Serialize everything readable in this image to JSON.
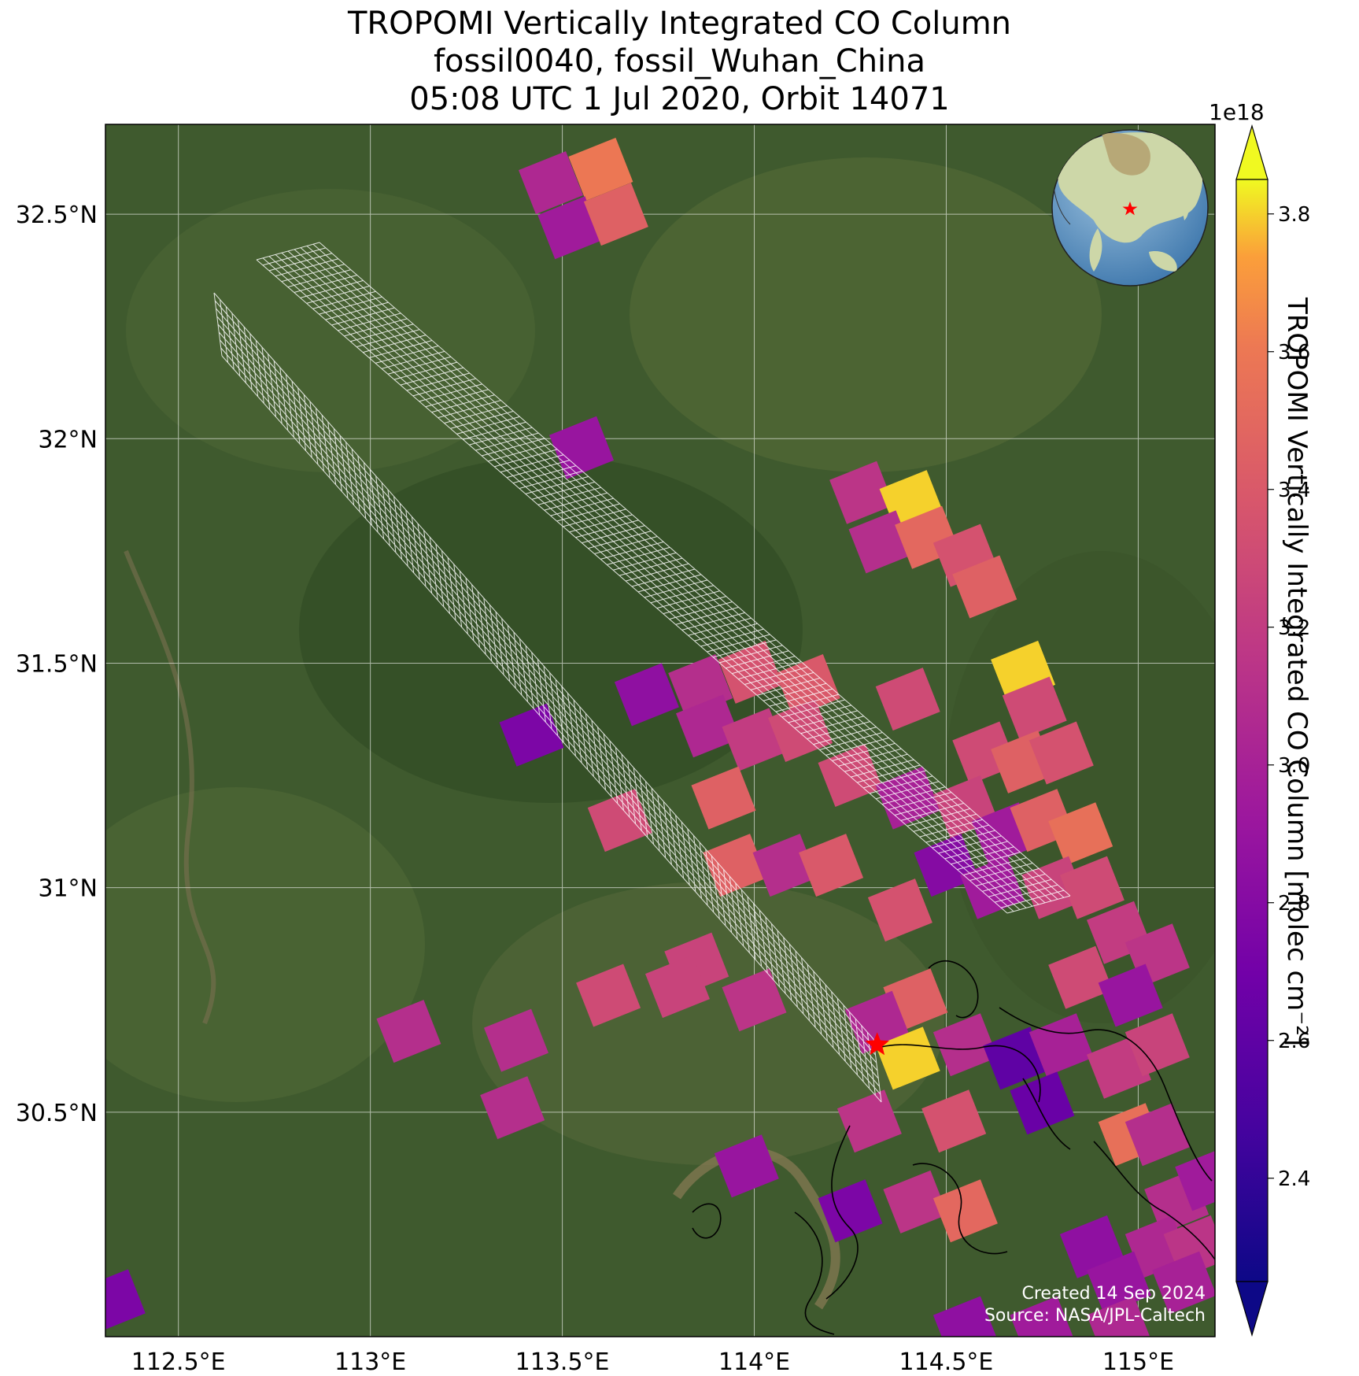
{
  "title": {
    "line1": "TROPOMI Vertically Integrated CO Column",
    "line2": "fossil0040, fossil_Wuhan_China",
    "line3": "05:08 UTC 1 Jul 2020, Orbit 14071"
  },
  "axes": {
    "lat_ticks": [
      {
        "value": 30.5,
        "label": "30.5°N"
      },
      {
        "value": 31.0,
        "label": "31°N"
      },
      {
        "value": 31.5,
        "label": "31.5°N"
      },
      {
        "value": 32.0,
        "label": "32°N"
      },
      {
        "value": 32.5,
        "label": "32.5°N"
      }
    ],
    "lon_ticks": [
      {
        "value": 112.5,
        "label": "112.5°E"
      },
      {
        "value": 113.0,
        "label": "113°E"
      },
      {
        "value": 113.5,
        "label": "113.5°E"
      },
      {
        "value": 114.0,
        "label": "114°E"
      },
      {
        "value": 114.5,
        "label": "114.5°E"
      },
      {
        "value": 115.0,
        "label": "115°E"
      }
    ],
    "lon_range": [
      112.31,
      115.2
    ],
    "lat_range": [
      30.0,
      32.7
    ]
  },
  "colorbar": {
    "label": "TROPOMI Vertically Integrated CO Column [molec cm⁻²]",
    "scale_exponent": "1e18",
    "range": [
      2.25,
      3.85
    ],
    "colormap": "plasma",
    "ticks": [
      "2.4",
      "2.6",
      "2.8",
      "3.0",
      "3.2",
      "3.4",
      "3.6",
      "3.8"
    ]
  },
  "site": {
    "name": "fossil_Wuhan_China",
    "lon": 114.32,
    "lat": 30.65,
    "marker_color": "#ff0000"
  },
  "footer": {
    "created": "Created 14 Sep 2024",
    "source": "Source: NASA/JPL-Caltech"
  },
  "map_data": {
    "pixels": [
      {
        "lon": 113.47,
        "lat": 32.57,
        "v": 3.05
      },
      {
        "lon": 113.6,
        "lat": 32.6,
        "v": 3.6
      },
      {
        "lon": 113.52,
        "lat": 32.47,
        "v": 2.95
      },
      {
        "lon": 113.64,
        "lat": 32.5,
        "v": 3.45
      },
      {
        "lon": 113.55,
        "lat": 31.98,
        "v": 2.9
      },
      {
        "lon": 114.28,
        "lat": 31.88,
        "v": 3.15
      },
      {
        "lon": 114.41,
        "lat": 31.86,
        "v": 3.8
      },
      {
        "lon": 114.33,
        "lat": 31.77,
        "v": 3.1
      },
      {
        "lon": 114.45,
        "lat": 31.78,
        "v": 3.5
      },
      {
        "lon": 114.55,
        "lat": 31.74,
        "v": 3.35
      },
      {
        "lon": 114.6,
        "lat": 31.67,
        "v": 3.45
      },
      {
        "lon": 113.42,
        "lat": 31.34,
        "v": 2.75
      },
      {
        "lon": 113.72,
        "lat": 31.43,
        "v": 2.85
      },
      {
        "lon": 113.86,
        "lat": 31.45,
        "v": 3.1
      },
      {
        "lon": 113.99,
        "lat": 31.48,
        "v": 3.35
      },
      {
        "lon": 114.14,
        "lat": 31.45,
        "v": 3.4
      },
      {
        "lon": 114.4,
        "lat": 31.42,
        "v": 3.3
      },
      {
        "lon": 114.7,
        "lat": 31.48,
        "v": 3.8
      },
      {
        "lon": 114.73,
        "lat": 31.4,
        "v": 3.3
      },
      {
        "lon": 113.88,
        "lat": 31.36,
        "v": 3.05
      },
      {
        "lon": 114.0,
        "lat": 31.33,
        "v": 3.2
      },
      {
        "lon": 114.12,
        "lat": 31.35,
        "v": 3.3
      },
      {
        "lon": 114.6,
        "lat": 31.3,
        "v": 3.3
      },
      {
        "lon": 114.7,
        "lat": 31.28,
        "v": 3.45
      },
      {
        "lon": 114.8,
        "lat": 31.3,
        "v": 3.35
      },
      {
        "lon": 113.65,
        "lat": 31.15,
        "v": 3.3
      },
      {
        "lon": 113.92,
        "lat": 31.2,
        "v": 3.45
      },
      {
        "lon": 114.25,
        "lat": 31.25,
        "v": 3.3
      },
      {
        "lon": 114.4,
        "lat": 31.2,
        "v": 3.0
      },
      {
        "lon": 114.55,
        "lat": 31.18,
        "v": 3.25
      },
      {
        "lon": 114.65,
        "lat": 31.12,
        "v": 2.95
      },
      {
        "lon": 114.75,
        "lat": 31.15,
        "v": 3.45
      },
      {
        "lon": 114.85,
        "lat": 31.12,
        "v": 3.55
      },
      {
        "lon": 113.95,
        "lat": 31.05,
        "v": 3.45
      },
      {
        "lon": 114.08,
        "lat": 31.05,
        "v": 3.1
      },
      {
        "lon": 114.2,
        "lat": 31.05,
        "v": 3.4
      },
      {
        "lon": 114.5,
        "lat": 31.05,
        "v": 2.8
      },
      {
        "lon": 114.62,
        "lat": 31.0,
        "v": 2.95
      },
      {
        "lon": 114.78,
        "lat": 31.0,
        "v": 3.25
      },
      {
        "lon": 114.88,
        "lat": 31.0,
        "v": 3.3
      },
      {
        "lon": 114.38,
        "lat": 30.95,
        "v": 3.35
      },
      {
        "lon": 114.95,
        "lat": 30.9,
        "v": 3.2
      },
      {
        "lon": 115.05,
        "lat": 30.85,
        "v": 3.15
      },
      {
        "lon": 114.85,
        "lat": 30.8,
        "v": 3.3
      },
      {
        "lon": 114.98,
        "lat": 30.76,
        "v": 2.9
      },
      {
        "lon": 113.85,
        "lat": 30.83,
        "v": 3.25
      },
      {
        "lon": 113.62,
        "lat": 30.76,
        "v": 3.3
      },
      {
        "lon": 113.8,
        "lat": 30.78,
        "v": 3.25
      },
      {
        "lon": 114.0,
        "lat": 30.75,
        "v": 3.15
      },
      {
        "lon": 113.1,
        "lat": 30.68,
        "v": 3.1
      },
      {
        "lon": 113.38,
        "lat": 30.66,
        "v": 3.1
      },
      {
        "lon": 114.42,
        "lat": 30.75,
        "v": 3.45
      },
      {
        "lon": 114.32,
        "lat": 30.7,
        "v": 3.05
      },
      {
        "lon": 114.4,
        "lat": 30.62,
        "v": 3.8
      },
      {
        "lon": 114.55,
        "lat": 30.65,
        "v": 3.1
      },
      {
        "lon": 114.68,
        "lat": 30.62,
        "v": 2.6
      },
      {
        "lon": 114.8,
        "lat": 30.65,
        "v": 3.0
      },
      {
        "lon": 114.95,
        "lat": 30.6,
        "v": 3.2
      },
      {
        "lon": 115.05,
        "lat": 30.65,
        "v": 3.25
      },
      {
        "lon": 114.75,
        "lat": 30.52,
        "v": 2.65
      },
      {
        "lon": 114.3,
        "lat": 30.48,
        "v": 3.15
      },
      {
        "lon": 114.52,
        "lat": 30.48,
        "v": 3.35
      },
      {
        "lon": 113.37,
        "lat": 30.51,
        "v": 3.1
      },
      {
        "lon": 114.98,
        "lat": 30.45,
        "v": 3.55
      },
      {
        "lon": 115.05,
        "lat": 30.45,
        "v": 3.1
      },
      {
        "lon": 113.98,
        "lat": 30.38,
        "v": 2.9
      },
      {
        "lon": 114.25,
        "lat": 30.28,
        "v": 2.75
      },
      {
        "lon": 114.42,
        "lat": 30.3,
        "v": 3.15
      },
      {
        "lon": 114.55,
        "lat": 30.28,
        "v": 3.5
      },
      {
        "lon": 115.1,
        "lat": 30.3,
        "v": 3.1
      },
      {
        "lon": 115.18,
        "lat": 30.35,
        "v": 2.95
      },
      {
        "lon": 114.88,
        "lat": 30.2,
        "v": 2.85
      },
      {
        "lon": 115.05,
        "lat": 30.2,
        "v": 3.05
      },
      {
        "lon": 115.15,
        "lat": 30.2,
        "v": 3.15
      },
      {
        "lon": 114.95,
        "lat": 30.12,
        "v": 2.9
      },
      {
        "lon": 115.12,
        "lat": 30.12,
        "v": 3.0
      },
      {
        "lon": 112.33,
        "lat": 30.08,
        "v": 2.75
      },
      {
        "lon": 114.55,
        "lat": 30.02,
        "v": 2.85
      },
      {
        "lon": 114.75,
        "lat": 30.02,
        "v": 2.95
      },
      {
        "lon": 114.95,
        "lat": 30.02,
        "v": 3.05
      }
    ]
  }
}
